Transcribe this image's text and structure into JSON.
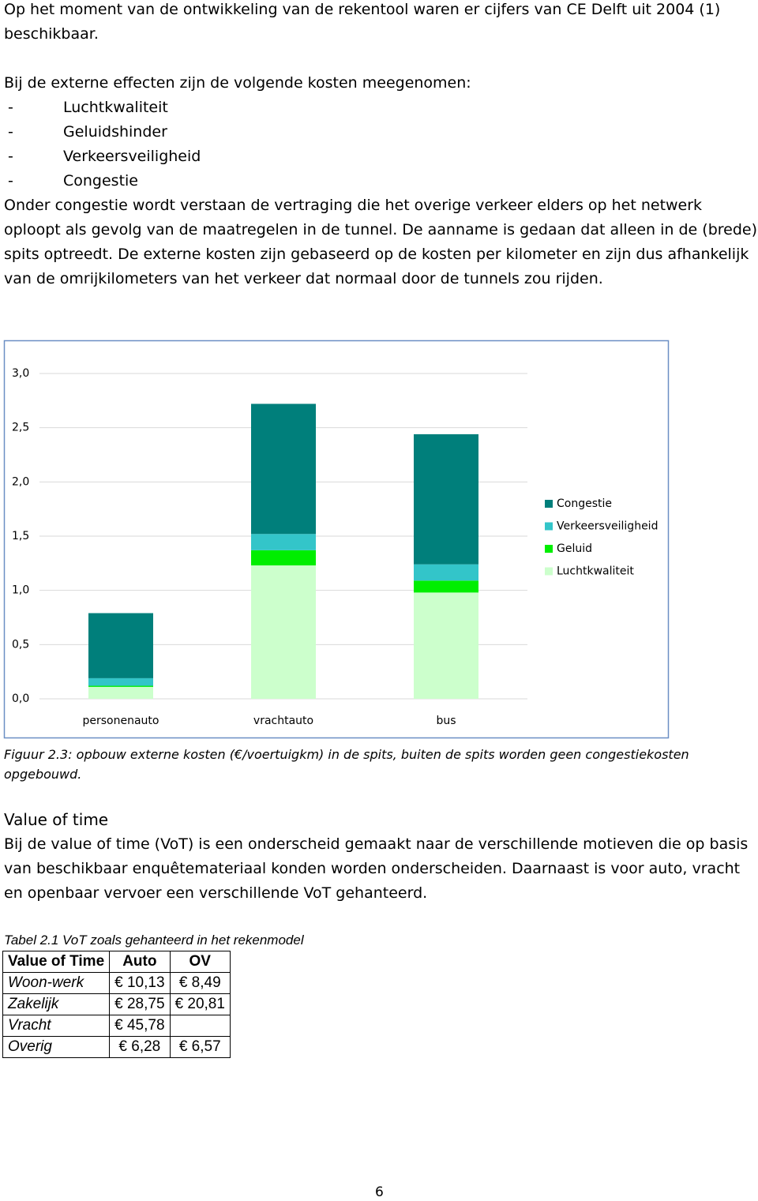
{
  "intro": "Op het moment van de ontwikkeling van de rekentool waren er cijfers van CE Delft uit 2004 (1) beschikbaar.",
  "effects_intro": "Bij de externe effecten zijn de volgende kosten meegenomen:",
  "effects_list": [
    "Luchtkwaliteit",
    "Geluidshinder",
    "Verkeersveiligheid",
    "Congestie"
  ],
  "congestion_text": "Onder congestie wordt verstaan de vertraging die het overige verkeer elders op het netwerk oploopt als gevolg van de maatregelen in de tunnel. De aanname is gedaan dat alleen in de (brede) spits optreedt. De externe kosten zijn gebaseerd op de kosten per kilometer en zijn dus afhankelijk van de omrijkilometers van het verkeer dat normaal door de tunnels zou rijden.",
  "chart_data": {
    "type": "stacked-bar",
    "categories": [
      "personenauto",
      "vrachtauto",
      "bus"
    ],
    "series": [
      {
        "name": "Luchtkwaliteit",
        "color": "#ccffcc",
        "values": [
          0.11,
          1.23,
          0.98
        ]
      },
      {
        "name": "Geluid",
        "color": "#00ee00",
        "values": [
          0.01,
          0.14,
          0.11
        ]
      },
      {
        "name": "Verkeersveiligheid",
        "color": "#33c5c9",
        "values": [
          0.07,
          0.15,
          0.15
        ]
      },
      {
        "name": "Congestie",
        "color": "#007f7b",
        "values": [
          0.6,
          1.2,
          1.2
        ]
      }
    ],
    "ylim": [
      0,
      3
    ],
    "yticks": [
      {
        "value": 0,
        "label": "0,0"
      },
      {
        "value": 0.5,
        "label": "0,5"
      },
      {
        "value": 1,
        "label": "1,0"
      },
      {
        "value": 1.5,
        "label": "1,5"
      },
      {
        "value": 2,
        "label": "2,0"
      },
      {
        "value": 2.5,
        "label": "2,5"
      },
      {
        "value": 3,
        "label": "3,0"
      }
    ],
    "grid": true,
    "legend": "right"
  },
  "figure_caption": "Figuur 2.3: opbouw externe kosten (€/voertuigkm) in de spits, buiten de spits worden geen congestiekosten opgebouwd.",
  "section_title": "Value of time",
  "section_text": "Bij de value of time (VoT) is een onderscheid gemaakt naar de verschillende motieven die op basis van beschikbaar enquêtemateriaal konden worden onderscheiden. Daarnaast is voor auto, vracht en openbaar vervoer een verschillende VoT gehanteerd.",
  "table_caption": "Tabel 2.1 VoT zoals gehanteerd in het rekenmodel",
  "table": {
    "header": [
      "Value of Time",
      "Auto",
      "OV"
    ],
    "rows": [
      [
        "Woon-werk",
        "€ 10,13",
        "€ 8,49"
      ],
      [
        "Zakelijk",
        "€ 28,75",
        "€ 20,81"
      ],
      [
        "Vracht",
        "€ 45,78",
        null
      ],
      [
        "Overig",
        "€ 6,28",
        "€ 6,57"
      ]
    ]
  },
  "page_number": "6"
}
